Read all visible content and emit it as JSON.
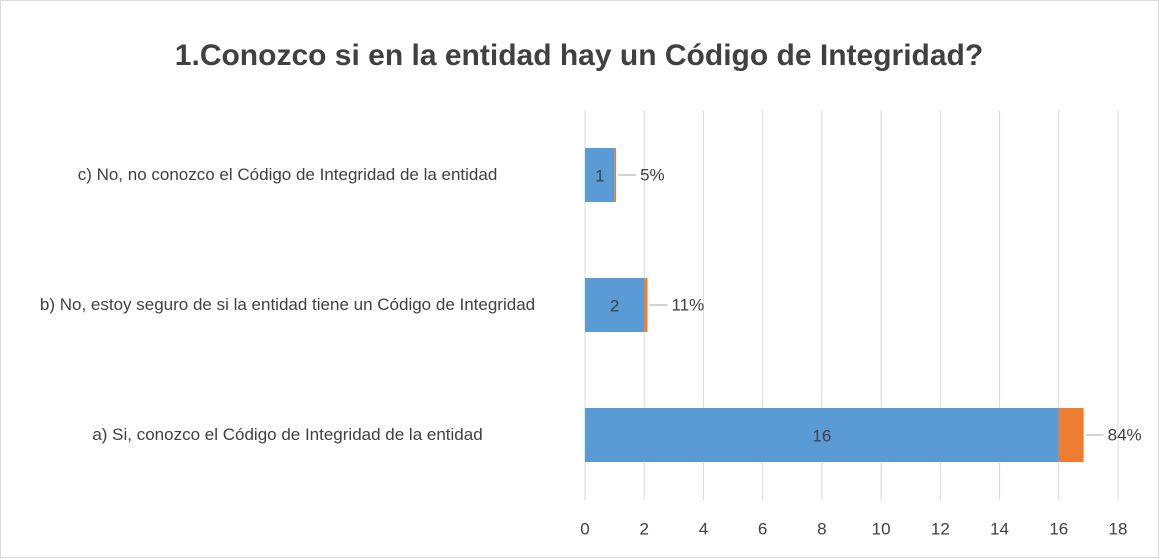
{
  "chart_data": {
    "type": "stacked_barh",
    "title": "1.Conozco si en la entidad hay un Código de Integridad?",
    "categories": [
      "c) No, no conozco el Código de Integridad de la entidad",
      "b) No, estoy seguro de si la entidad tiene un Código de Integridad",
      "a) Si, conozco el Código de Integridad de la entidad"
    ],
    "series": [
      {
        "color": "#5b9bd5",
        "values": [
          1,
          2,
          16
        ]
      },
      {
        "color": "#ed7d31",
        "values": [
          0.05,
          0.11,
          0.84
        ],
        "value_labels": [
          "5%",
          "11%",
          "84%"
        ]
      }
    ],
    "xlim": [
      0,
      18
    ],
    "xticks": [
      0,
      2,
      4,
      6,
      8,
      10,
      12,
      14,
      16,
      18
    ],
    "grid": true
  }
}
